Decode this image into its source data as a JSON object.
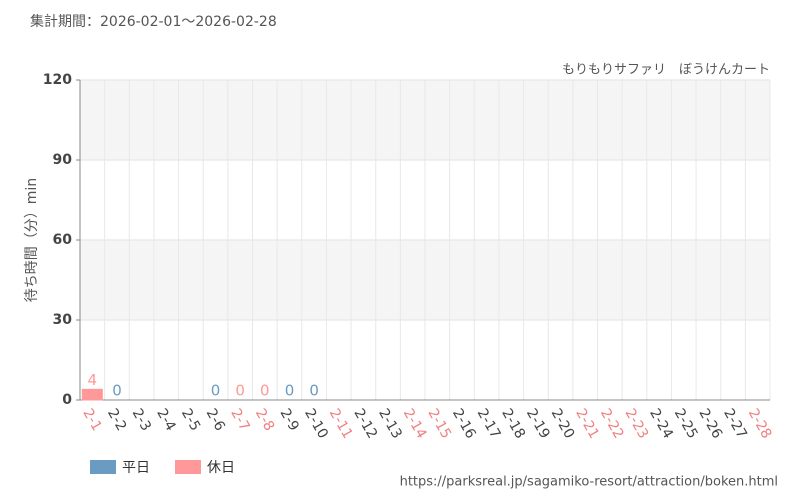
{
  "chart_data": {
    "type": "bar",
    "title": "集計期間：2026-02-01～2026-02-28",
    "subtitle": "もりもりサファリ　ぼうけんカート",
    "y_label": "待ち時間（分）min",
    "source": "https://parksreal.jp/sagamiko-resort/attraction/boken.html",
    "categories": [
      "2-1",
      "2-2",
      "2-3",
      "2-4",
      "2-5",
      "2-6",
      "2-7",
      "2-8",
      "2-9",
      "2-10",
      "2-11",
      "2-12",
      "2-13",
      "2-14",
      "2-15",
      "2-16",
      "2-17",
      "2-18",
      "2-19",
      "2-20",
      "2-21",
      "2-22",
      "2-23",
      "2-24",
      "2-25",
      "2-26",
      "2-27",
      "2-28"
    ],
    "category_colors": [
      "#f08080",
      "#444",
      "#444",
      "#444",
      "#444",
      "#444",
      "#f08080",
      "#f08080",
      "#444",
      "#444",
      "#f08080",
      "#444",
      "#444",
      "#f08080",
      "#f08080",
      "#444",
      "#444",
      "#444",
      "#444",
      "#444",
      "#f08080",
      "#f08080",
      "#f08080",
      "#444",
      "#444",
      "#444",
      "#444",
      "#f08080"
    ],
    "series": [
      {
        "name": "平日",
        "color": "#6a9bc3",
        "values": [
          null,
          0,
          null,
          null,
          null,
          0,
          null,
          null,
          0,
          0,
          null,
          null,
          null,
          null,
          null,
          null,
          null,
          null,
          null,
          null,
          null,
          null,
          null,
          null,
          null,
          null,
          null,
          null
        ]
      },
      {
        "name": "休日",
        "color": "#ff9999",
        "values": [
          4,
          null,
          null,
          null,
          null,
          null,
          0,
          0,
          null,
          null,
          null,
          null,
          null,
          null,
          null,
          null,
          null,
          null,
          null,
          null,
          null,
          null,
          null,
          null,
          null,
          null,
          null,
          null
        ]
      }
    ],
    "ylim": [
      0,
      120
    ],
    "yticks": [
      0,
      30,
      60,
      90,
      120
    ],
    "grid": true
  }
}
